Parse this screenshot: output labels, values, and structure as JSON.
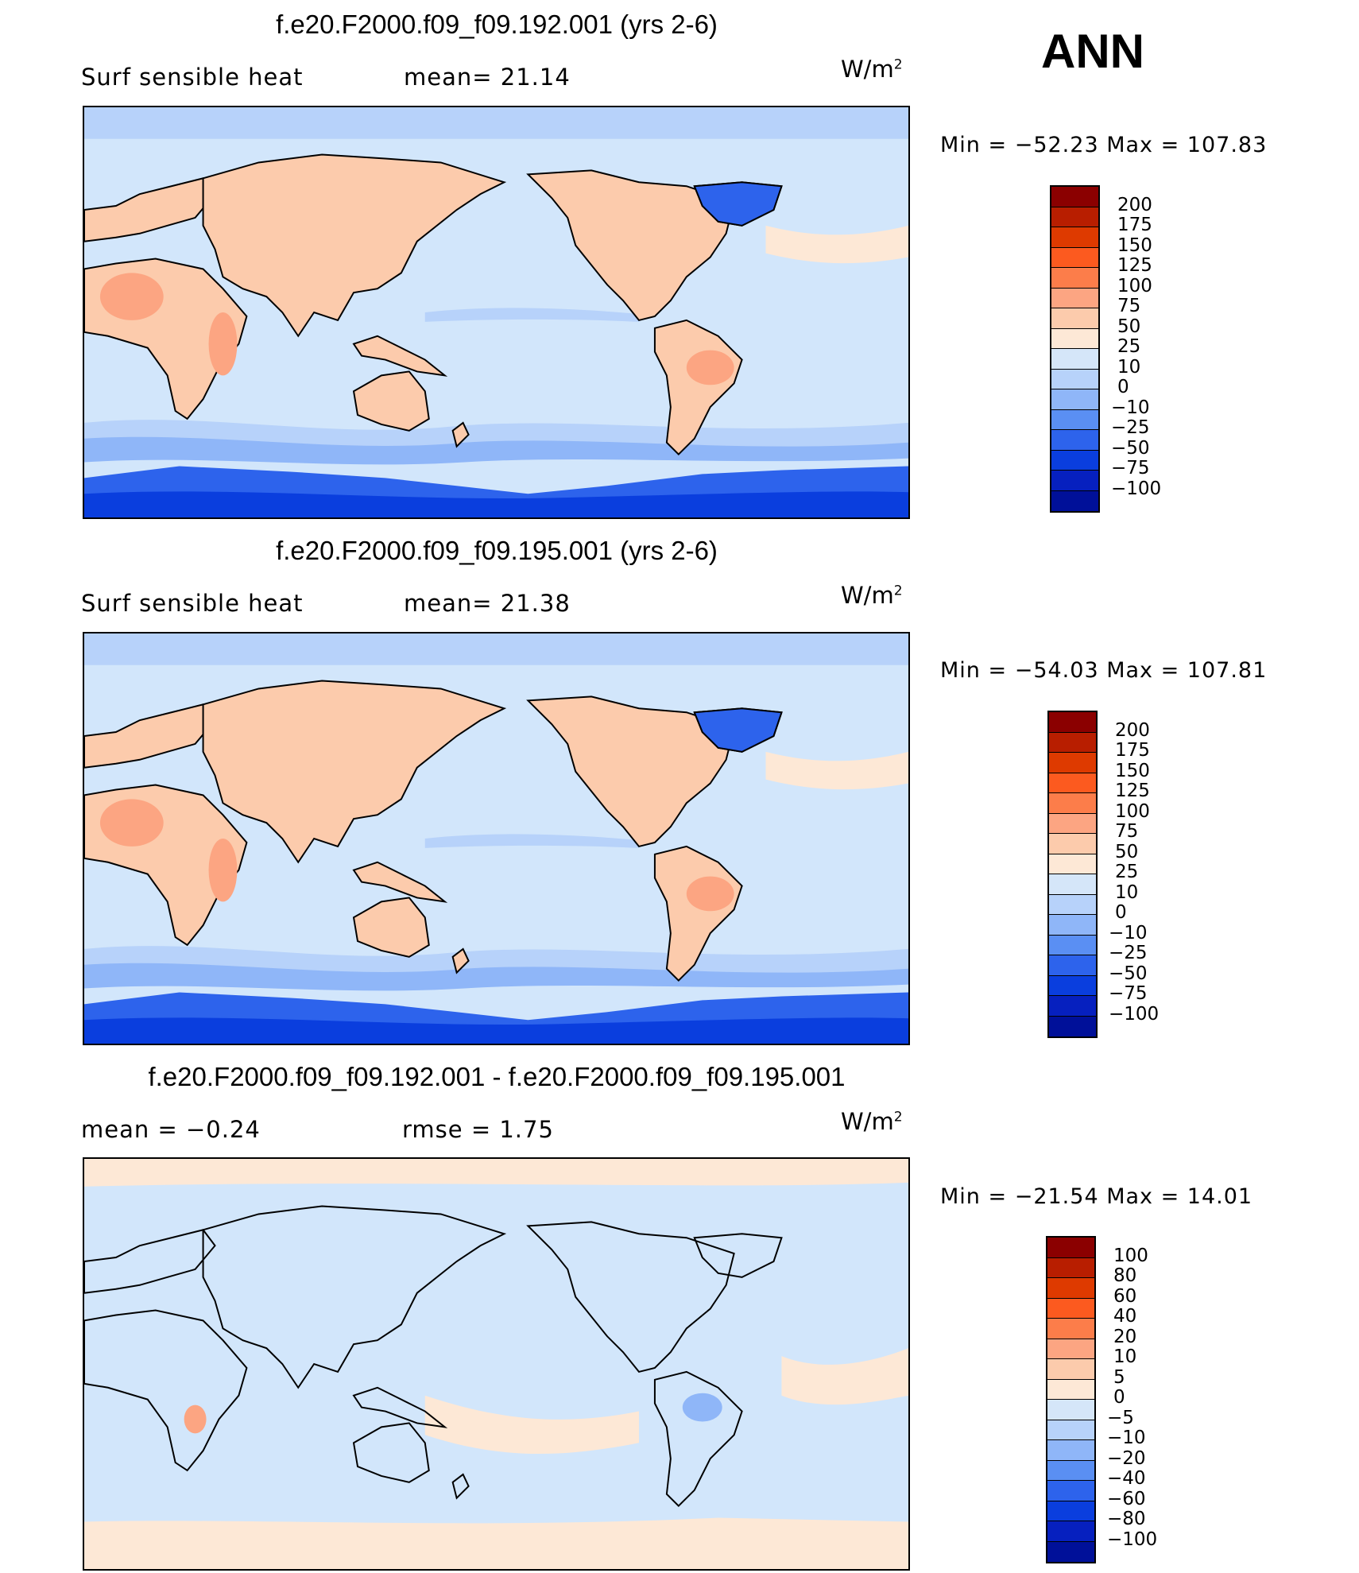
{
  "season": "ANN",
  "panels": [
    {
      "title": "f.e20.F2000.f09_f09.192.001 (yrs 2-6)",
      "left_label": "Surf  sensible  heat",
      "mid_label": "mean=   21.14",
      "units": "W/m",
      "units_exp": "2",
      "minmax": "Min  =  −52.23  Max  =  107.83",
      "min_value": -52.23,
      "max_value": 107.83,
      "levels": [
        "200",
        "175",
        "150",
        "125",
        "100",
        "75",
        "50",
        "25",
        "10",
        "0",
        "−10",
        "−25",
        "−50",
        "−75",
        "−100"
      ]
    },
    {
      "title": "f.e20.F2000.f09_f09.195.001 (yrs 2-6)",
      "left_label": "Surf  sensible  heat",
      "mid_label": "mean=   21.38",
      "units": "W/m",
      "units_exp": "2",
      "minmax": "Min  =  −54.03  Max  =  107.81",
      "min_value": -54.03,
      "max_value": 107.81,
      "levels": [
        "200",
        "175",
        "150",
        "125",
        "100",
        "75",
        "50",
        "25",
        "10",
        "0",
        "−10",
        "−25",
        "−50",
        "−75",
        "−100"
      ]
    },
    {
      "title": "f.e20.F2000.f09_f09.192.001 - f.e20.F2000.f09_f09.195.001",
      "left_label": "mean  =     −0.24",
      "mid_label": "rmse  =      1.75",
      "units": "W/m",
      "units_exp": "2",
      "minmax": "Min  =  −21.54  Max  =    14.01",
      "min_value": -21.54,
      "max_value": 14.01,
      "levels": [
        "100",
        "80",
        "60",
        "40",
        "20",
        "10",
        "5",
        "0",
        "−5",
        "−10",
        "−20",
        "−40",
        "−60",
        "−80",
        "−100"
      ]
    }
  ],
  "colorbar_colors": [
    "#8b0000",
    "#b81e00",
    "#de3a00",
    "#fc5a1f",
    "#fc7d4a",
    "#fca582",
    "#fccbac",
    "#fde8d6",
    "#d5e6f9",
    "#b7d2fa",
    "#8fb6f8",
    "#5a8ff3",
    "#2d63ec",
    "#0a3ede",
    "#0620bf",
    "#001099"
  ],
  "palette": {
    "ocean": "#d2e6fb",
    "ocean_low": "#b7d2fa",
    "ocean_mid": "#8fb6f8",
    "land_warm": "#fccbac",
    "land_hot": "#fca582",
    "land_mild": "#fde8d6",
    "ice": "#2d63ec",
    "ice_dark": "#0a3ede"
  }
}
